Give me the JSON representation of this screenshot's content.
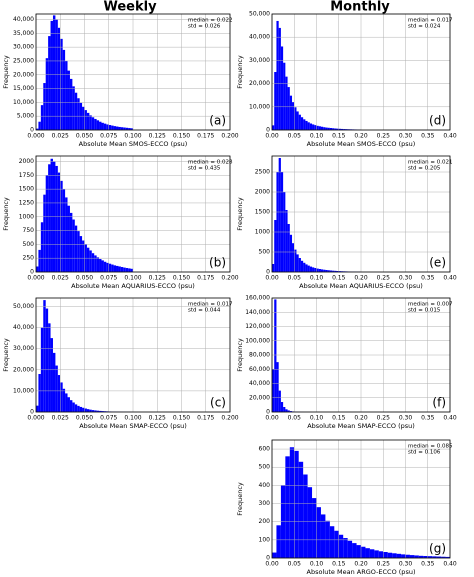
{
  "column_titles": [
    "Weekly",
    "Monthly"
  ],
  "chart_data": [
    {
      "type": "histogram",
      "xlabel": "Absolute Mean SMOS-ECCO (psu)",
      "ylabel": "Frequency",
      "annotations": [
        "median = 0.022",
        "std = 0.026"
      ],
      "panel_label": "(a)",
      "color": "#0000ff",
      "grid": true,
      "bins": [
        0,
        0.0025,
        0.005,
        0.0075,
        0.01,
        0.0125,
        0.015,
        0.0175,
        0.02,
        0.0225,
        0.025,
        0.0275,
        0.03,
        0.0325,
        0.035,
        0.0375,
        0.04,
        0.0425,
        0.045,
        0.0475,
        0.05,
        0.0525,
        0.055,
        0.0575,
        0.06,
        0.0625,
        0.065,
        0.0675,
        0.07,
        0.0725,
        0.075,
        0.0775,
        0.08,
        0.0825,
        0.085,
        0.0875,
        0.09,
        0.0925,
        0.095,
        0.0975,
        0.1
      ],
      "counts": [
        500,
        3000,
        9000,
        17000,
        26000,
        34000,
        39500,
        41500,
        40000,
        37000,
        33000,
        29000,
        25000,
        21500,
        18500,
        15800,
        13500,
        11500,
        9800,
        8400,
        7200,
        6200,
        5300,
        4600,
        4000,
        3500,
        3000,
        2600,
        2300,
        2000,
        1800,
        1600,
        1400,
        1250,
        1100,
        1000,
        900,
        800,
        700,
        620
      ],
      "xlim": [
        0,
        0.2
      ],
      "ylim": [
        0,
        42000
      ],
      "xticks": [
        {
          "value": 0,
          "label": "0.000"
        },
        {
          "value": 0.025,
          "label": "0.025"
        },
        {
          "value": 0.05,
          "label": "0.050"
        },
        {
          "value": 0.075,
          "label": "0.075"
        },
        {
          "value": 0.1,
          "label": "0.100"
        },
        {
          "value": 0.125,
          "label": "0.125"
        },
        {
          "value": 0.15,
          "label": "0.150"
        },
        {
          "value": 0.175,
          "label": "0.175"
        },
        {
          "value": 0.2,
          "label": "0.200"
        }
      ],
      "yticks": [
        0,
        {
          "value": 5000,
          "label": "5,000"
        },
        {
          "value": 10000,
          "label": "10,000"
        },
        {
          "value": 15000,
          "label": "15,000"
        },
        {
          "value": 20000,
          "label": "20,000"
        },
        {
          "value": 25000,
          "label": "25,000"
        },
        {
          "value": 30000,
          "label": "30,000"
        },
        {
          "value": 35000,
          "label": "35,000"
        },
        {
          "value": 40000,
          "label": "40,000"
        }
      ]
    },
    {
      "type": "histogram",
      "xlabel": "Absolute Mean SMOS-ECCO (psu)",
      "ylabel": "Frequency",
      "annotations": [
        "median = 0.017",
        "std = 0.024"
      ],
      "panel_label": "(d)",
      "color": "#0000ff",
      "grid": true,
      "bins": [
        0,
        0.005,
        0.01,
        0.015,
        0.02,
        0.025,
        0.03,
        0.035,
        0.04,
        0.045,
        0.05,
        0.055,
        0.06,
        0.065,
        0.07,
        0.075,
        0.08,
        0.085,
        0.09,
        0.095,
        0.1,
        0.105,
        0.11,
        0.115,
        0.12,
        0.125,
        0.13,
        0.135,
        0.14,
        0.145,
        0.15,
        0.155,
        0.16,
        0.165,
        0.17,
        0.175,
        0.18,
        0.185,
        0.19,
        0.195,
        0.2
      ],
      "counts": [
        2000,
        25000,
        47000,
        44000,
        36000,
        29000,
        23000,
        18500,
        14800,
        12000,
        9800,
        8000,
        6600,
        5500,
        4600,
        3900,
        3300,
        2800,
        2400,
        2100,
        1800,
        1600,
        1400,
        1200,
        1050,
        950,
        850,
        750,
        650,
        580,
        520,
        460,
        410,
        370,
        330,
        300,
        270,
        240,
        220,
        200
      ],
      "xlim": [
        0,
        0.4
      ],
      "ylim": [
        0,
        50000
      ],
      "xticks": [
        {
          "value": 0,
          "label": "0.00"
        },
        {
          "value": 0.05,
          "label": "0.05"
        },
        {
          "value": 0.1,
          "label": "0.10"
        },
        {
          "value": 0.15,
          "label": "0.15"
        },
        {
          "value": 0.2,
          "label": "0.20"
        },
        {
          "value": 0.25,
          "label": "0.25"
        },
        {
          "value": 0.3,
          "label": "0.30"
        },
        {
          "value": 0.35,
          "label": "0.35"
        },
        {
          "value": 0.4,
          "label": "0.40"
        }
      ],
      "yticks": [
        0,
        {
          "value": 10000,
          "label": "10,000"
        },
        {
          "value": 20000,
          "label": "20,000"
        },
        {
          "value": 30000,
          "label": "30,000"
        },
        {
          "value": 40000,
          "label": "40,000"
        },
        {
          "value": 50000,
          "label": "50,000"
        }
      ]
    },
    {
      "type": "histogram",
      "xlabel": "Absolute Mean AQUARIUS-ECCO (psu)",
      "ylabel": "Frequency",
      "annotations": [
        "median = 0.028",
        "std = 0.435"
      ],
      "panel_label": "(b)",
      "color": "#0000ff",
      "grid": true,
      "bins": [
        0,
        0.0025,
        0.005,
        0.0075,
        0.01,
        0.0125,
        0.015,
        0.0175,
        0.02,
        0.0225,
        0.025,
        0.0275,
        0.03,
        0.0325,
        0.035,
        0.0375,
        0.04,
        0.0425,
        0.045,
        0.0475,
        0.05,
        0.0525,
        0.055,
        0.0575,
        0.06,
        0.0625,
        0.065,
        0.0675,
        0.07,
        0.0725,
        0.075,
        0.0775,
        0.08,
        0.0825,
        0.085,
        0.0875,
        0.09,
        0.0925,
        0.095,
        0.0975,
        0.1
      ],
      "counts": [
        100,
        400,
        900,
        1400,
        1750,
        1950,
        2050,
        2000,
        1920,
        1800,
        1650,
        1500,
        1350,
        1200,
        1070,
        950,
        840,
        740,
        650,
        570,
        500,
        440,
        390,
        340,
        300,
        265,
        235,
        210,
        185,
        165,
        150,
        135,
        120,
        110,
        100,
        90,
        80,
        72,
        65,
        58
      ],
      "xlim": [
        0,
        0.2
      ],
      "ylim": [
        0,
        2100
      ],
      "xticks": [
        {
          "value": 0,
          "label": "0.000"
        },
        {
          "value": 0.025,
          "label": "0.025"
        },
        {
          "value": 0.05,
          "label": "0.050"
        },
        {
          "value": 0.075,
          "label": "0.075"
        },
        {
          "value": 0.1,
          "label": "0.100"
        },
        {
          "value": 0.125,
          "label": "0.125"
        },
        {
          "value": 0.15,
          "label": "0.150"
        },
        {
          "value": 0.175,
          "label": "0.175"
        },
        {
          "value": 0.2,
          "label": "0.200"
        }
      ],
      "yticks": [
        0,
        250,
        500,
        750,
        1000,
        1250,
        1500,
        1750,
        2000
      ]
    },
    {
      "type": "histogram",
      "xlabel": "Absolute Mean AQUARIUS-ECCO (psu)",
      "ylabel": "Frequency",
      "annotations": [
        "median = 0.021",
        "std = 0.205"
      ],
      "panel_label": "(e)",
      "color": "#0000ff",
      "grid": true,
      "bins": [
        0,
        0.005,
        0.01,
        0.015,
        0.02,
        0.025,
        0.03,
        0.035,
        0.04,
        0.045,
        0.05,
        0.055,
        0.06,
        0.065,
        0.07,
        0.075,
        0.08,
        0.085,
        0.09,
        0.095,
        0.1,
        0.105,
        0.11,
        0.115,
        0.12,
        0.125,
        0.13,
        0.135,
        0.14,
        0.145,
        0.15,
        0.155,
        0.16,
        0.165,
        0.17,
        0.175,
        0.18,
        0.185,
        0.19,
        0.195,
        0.2
      ],
      "counts": [
        200,
        1300,
        2500,
        2850,
        2500,
        2000,
        1550,
        1200,
        930,
        720,
        560,
        440,
        350,
        280,
        230,
        190,
        160,
        135,
        115,
        100,
        85,
        75,
        65,
        57,
        50,
        44,
        38,
        33,
        29,
        25,
        22,
        19,
        17,
        15,
        13,
        11,
        10,
        9,
        8,
        7
      ],
      "xlim": [
        0,
        0.4
      ],
      "ylim": [
        0,
        2900
      ],
      "xticks": [
        {
          "value": 0,
          "label": "0.00"
        },
        {
          "value": 0.05,
          "label": "0.05"
        },
        {
          "value": 0.1,
          "label": "0.10"
        },
        {
          "value": 0.15,
          "label": "0.15"
        },
        {
          "value": 0.2,
          "label": "0.20"
        },
        {
          "value": 0.25,
          "label": "0.25"
        },
        {
          "value": 0.3,
          "label": "0.30"
        },
        {
          "value": 0.35,
          "label": "0.35"
        },
        {
          "value": 0.4,
          "label": "0.40"
        }
      ],
      "yticks": [
        0,
        500,
        1000,
        1500,
        2000,
        2500
      ]
    },
    {
      "type": "histogram",
      "xlabel": "Absolute Mean SMAP-ECCO (psu)",
      "ylabel": "Frequency",
      "annotations": [
        "median = 0.017",
        "std = 0.044"
      ],
      "panel_label": "(c)",
      "color": "#0000ff",
      "grid": true,
      "bins": [
        0,
        0.0025,
        0.005,
        0.0075,
        0.01,
        0.0125,
        0.015,
        0.0175,
        0.02,
        0.0225,
        0.025,
        0.0275,
        0.03,
        0.0325,
        0.035,
        0.0375,
        0.04,
        0.0425,
        0.045,
        0.0475,
        0.05,
        0.0525,
        0.055,
        0.0575,
        0.06,
        0.0625,
        0.065,
        0.0675,
        0.07,
        0.0725,
        0.075,
        0.0775,
        0.08,
        0.0825,
        0.085,
        0.0875,
        0.09,
        0.0925,
        0.095,
        0.0975,
        0.1
      ],
      "counts": [
        3000,
        18000,
        40000,
        53000,
        49000,
        42000,
        35000,
        28000,
        22000,
        17500,
        14000,
        11000,
        8800,
        7000,
        5600,
        4500,
        3600,
        2900,
        2400,
        2000,
        1650,
        1350,
        1100,
        900,
        750,
        620,
        520,
        440,
        370,
        310,
        260,
        220,
        190,
        160,
        140,
        120,
        100,
        85,
        75,
        65
      ],
      "xlim": [
        0,
        0.2
      ],
      "ylim": [
        0,
        54000
      ],
      "xticks": [
        {
          "value": 0,
          "label": "0.000"
        },
        {
          "value": 0.025,
          "label": "0.025"
        },
        {
          "value": 0.05,
          "label": "0.050"
        },
        {
          "value": 0.075,
          "label": "0.075"
        },
        {
          "value": 0.1,
          "label": "0.100"
        },
        {
          "value": 0.125,
          "label": "0.125"
        },
        {
          "value": 0.15,
          "label": "0.150"
        },
        {
          "value": 0.175,
          "label": "0.175"
        },
        {
          "value": 0.2,
          "label": "0.200"
        }
      ],
      "yticks": [
        0,
        {
          "value": 10000,
          "label": "10,000"
        },
        {
          "value": 20000,
          "label": "20,000"
        },
        {
          "value": 30000,
          "label": "30,000"
        },
        {
          "value": 40000,
          "label": "40,000"
        },
        {
          "value": 50000,
          "label": "50,000"
        }
      ]
    },
    {
      "type": "histogram",
      "xlabel": "Absolute Mean SMAP-ECCO (psu)",
      "ylabel": "Frequency",
      "annotations": [
        "median = 0.007",
        "std = 0.015"
      ],
      "panel_label": "(f)",
      "color": "#0000ff",
      "grid": true,
      "bins": [
        0,
        0.005,
        0.01,
        0.015,
        0.02,
        0.025,
        0.03,
        0.035,
        0.04,
        0.045,
        0.05,
        0.055,
        0.06,
        0.065,
        0.07,
        0.075,
        0.08,
        0.085,
        0.09,
        0.095,
        0.1,
        0.105,
        0.11,
        0.115,
        0.12,
        0.125,
        0.13,
        0.135,
        0.14,
        0.145,
        0.15,
        0.155,
        0.16,
        0.165,
        0.17,
        0.175,
        0.18,
        0.185,
        0.19,
        0.195,
        0.2
      ],
      "counts": [
        60000,
        158000,
        70000,
        30000,
        14000,
        7000,
        3800,
        2200,
        1300,
        800,
        500,
        330,
        220,
        150,
        100,
        70,
        50,
        35,
        25,
        18,
        13,
        9,
        7,
        5,
        4,
        3,
        2,
        2,
        1,
        1,
        1,
        1,
        0,
        0,
        0,
        0,
        0,
        0,
        0,
        0
      ],
      "xlim": [
        0,
        0.4
      ],
      "ylim": [
        0,
        160000
      ],
      "xticks": [
        {
          "value": 0,
          "label": "0.00"
        },
        {
          "value": 0.05,
          "label": "0.05"
        },
        {
          "value": 0.1,
          "label": "0.10"
        },
        {
          "value": 0.15,
          "label": "0.15"
        },
        {
          "value": 0.2,
          "label": "0.20"
        },
        {
          "value": 0.25,
          "label": "0.25"
        },
        {
          "value": 0.3,
          "label": "0.30"
        },
        {
          "value": 0.35,
          "label": "0.35"
        },
        {
          "value": 0.4,
          "label": "0.40"
        }
      ],
      "yticks": [
        0,
        {
          "value": 20000,
          "label": "20,000"
        },
        {
          "value": 40000,
          "label": "40,000"
        },
        {
          "value": 60000,
          "label": "60,000"
        },
        {
          "value": 80000,
          "label": "80,000"
        },
        {
          "value": 100000,
          "label": "100,000"
        },
        {
          "value": 120000,
          "label": "120,000"
        },
        {
          "value": 140000,
          "label": "140,000"
        },
        {
          "value": 160000,
          "label": "160,000"
        }
      ]
    },
    {
      "type": "histogram",
      "xlabel": "Absolute Mean ARGO-ECCO (psu)",
      "ylabel": "Frequency",
      "annotations": [
        "median = 0.085",
        "std = 0.106"
      ],
      "panel_label": "(g)",
      "color": "#0000ff",
      "grid": true,
      "bins": [
        0,
        0.01,
        0.02,
        0.03,
        0.04,
        0.05,
        0.06,
        0.07,
        0.08,
        0.09,
        0.1,
        0.11,
        0.12,
        0.13,
        0.14,
        0.15,
        0.16,
        0.17,
        0.18,
        0.19,
        0.2,
        0.21,
        0.22,
        0.23,
        0.24,
        0.25,
        0.26,
        0.27,
        0.28,
        0.29,
        0.3,
        0.31,
        0.32,
        0.33,
        0.34,
        0.35,
        0.36,
        0.37,
        0.38,
        0.39,
        0.4
      ],
      "counts": [
        30,
        180,
        400,
        560,
        610,
        590,
        530,
        460,
        390,
        330,
        280,
        240,
        205,
        175,
        150,
        128,
        110,
        95,
        82,
        71,
        62,
        54,
        48,
        42,
        37,
        33,
        29,
        26,
        23,
        20,
        18,
        16,
        14,
        12,
        11,
        10,
        9,
        8,
        7,
        6
      ],
      "xlim": [
        0,
        0.4
      ],
      "ylim": [
        0,
        650
      ],
      "xticks": [
        {
          "value": 0,
          "label": "0.00"
        },
        {
          "value": 0.05,
          "label": "0.05"
        },
        {
          "value": 0.1,
          "label": "0.10"
        },
        {
          "value": 0.15,
          "label": "0.15"
        },
        {
          "value": 0.2,
          "label": "0.20"
        },
        {
          "value": 0.25,
          "label": "0.25"
        },
        {
          "value": 0.3,
          "label": "0.30"
        },
        {
          "value": 0.35,
          "label": "0.35"
        },
        {
          "value": 0.4,
          "label": "0.40"
        }
      ],
      "yticks": [
        0,
        100,
        200,
        300,
        400,
        500,
        600
      ]
    }
  ]
}
